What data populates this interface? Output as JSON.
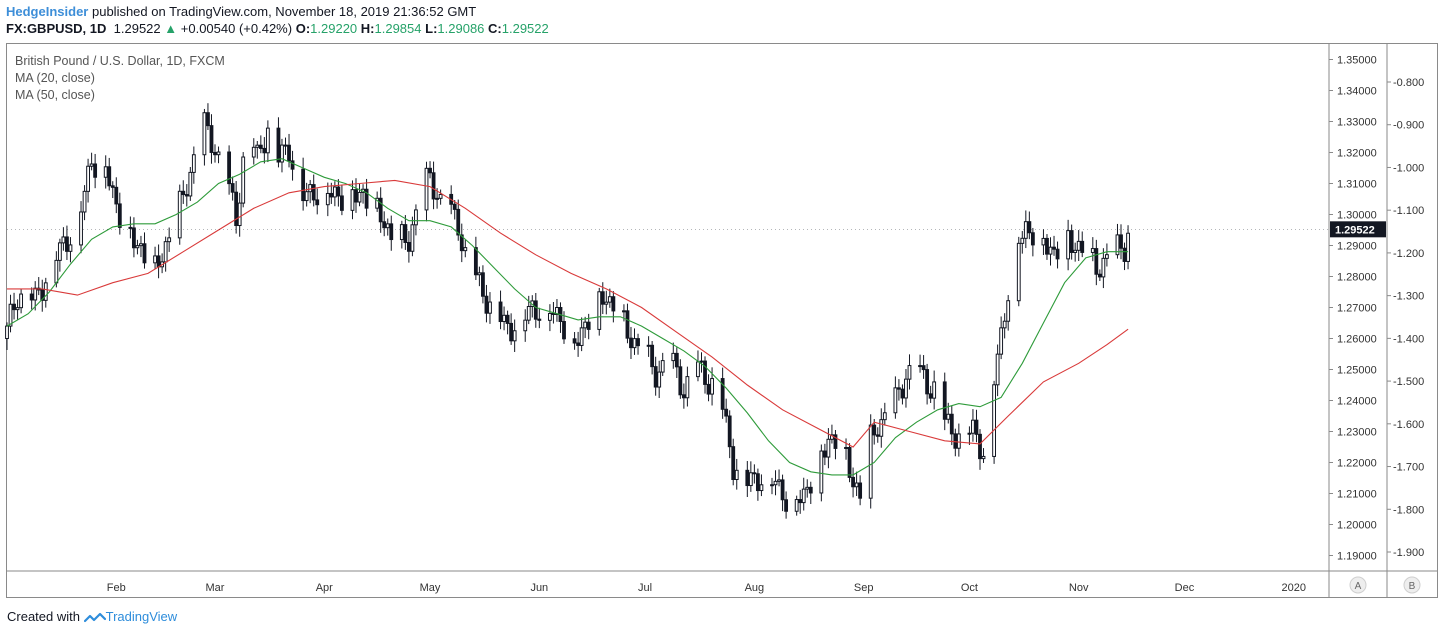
{
  "header": {
    "author": "HedgeInsider",
    "published_text": "published on TradingView.com, November 18, 2019 21:36:52 GMT",
    "symbol": "FX:GBPUSD, 1D",
    "last": "1.29522",
    "change_arrow": "▲",
    "change": "+0.00540 (+0.42%)",
    "o_label": "O:",
    "o_value": "1.29220",
    "h_label": "H:",
    "h_value": "1.29854",
    "l_label": "L:",
    "l_value": "1.29086",
    "c_label": "C:",
    "c_value": "1.29522"
  },
  "legend": {
    "title": "British Pound / U.S. Dollar, 1D, FXCM",
    "ma20": "MA (20, close)",
    "ma50": "MA (50, close)"
  },
  "footer": {
    "created_with": "Created with",
    "brand": "TradingView"
  },
  "axis_buttons": {
    "a": "A",
    "b": "B"
  },
  "colors": {
    "candle": "#131722",
    "ma20": "#2e9b3a",
    "ma50": "#d93a3a",
    "price_tag_bg": "#131722",
    "price_tag_text": "#ffffff"
  },
  "chart_data": {
    "type": "candlestick",
    "title": "British Pound / U.S. Dollar, 1D, FXCM",
    "price_axis": {
      "ylim": [
        1.185,
        1.355
      ],
      "ticks": [
        "1.35000",
        "1.34000",
        "1.33000",
        "1.32000",
        "1.31000",
        "1.30000",
        "1.29000",
        "1.28000",
        "1.27000",
        "1.26000",
        "1.25000",
        "1.24000",
        "1.23000",
        "1.22000",
        "1.21000",
        "1.20000",
        "1.19000"
      ],
      "current_price_label": "1.29522",
      "current_price": 1.29522
    },
    "secondary_axis": {
      "ticks": [
        "-0.800",
        "-0.900",
        "-1.000",
        "-1.100",
        "-1.200",
        "-1.300",
        "-1.400",
        "-1.500",
        "-1.600",
        "-1.700",
        "-1.800",
        "-1.900"
      ]
    },
    "time_axis": {
      "labels": [
        "Feb",
        "Mar",
        "Apr",
        "May",
        "Jun",
        "Jul",
        "Aug",
        "Sep",
        "Oct",
        "Nov",
        "Dec",
        "2020"
      ],
      "label_days": [
        31,
        59,
        90,
        120,
        151,
        181,
        212,
        243,
        273,
        304,
        334,
        365
      ],
      "xlim_days": [
        0,
        375
      ]
    },
    "price_path": [
      {
        "day": 0,
        "close": 1.262
      },
      {
        "day": 3,
        "close": 1.275
      },
      {
        "day": 8,
        "close": 1.272
      },
      {
        "day": 12,
        "close": 1.283
      },
      {
        "day": 17,
        "close": 1.292
      },
      {
        "day": 21,
        "close": 1.302
      },
      {
        "day": 24,
        "close": 1.318
      },
      {
        "day": 28,
        "close": 1.315
      },
      {
        "day": 31,
        "close": 1.303
      },
      {
        "day": 35,
        "close": 1.293
      },
      {
        "day": 38,
        "close": 1.289
      },
      {
        "day": 42,
        "close": 1.282
      },
      {
        "day": 45,
        "close": 1.29
      },
      {
        "day": 49,
        "close": 1.302
      },
      {
        "day": 53,
        "close": 1.318
      },
      {
        "day": 56,
        "close": 1.328
      },
      {
        "day": 59,
        "close": 1.322
      },
      {
        "day": 62,
        "close": 1.311
      },
      {
        "day": 65,
        "close": 1.299
      },
      {
        "day": 68,
        "close": 1.327
      },
      {
        "day": 71,
        "close": 1.318
      },
      {
        "day": 74,
        "close": 1.329
      },
      {
        "day": 77,
        "close": 1.318
      },
      {
        "day": 80,
        "close": 1.322
      },
      {
        "day": 84,
        "close": 1.306
      },
      {
        "day": 88,
        "close": 1.308
      },
      {
        "day": 92,
        "close": 1.307
      },
      {
        "day": 96,
        "close": 1.306
      },
      {
        "day": 101,
        "close": 1.307
      },
      {
        "day": 106,
        "close": 1.3
      },
      {
        "day": 110,
        "close": 1.291
      },
      {
        "day": 114,
        "close": 1.292
      },
      {
        "day": 117,
        "close": 1.305
      },
      {
        "day": 120,
        "close": 1.312
      },
      {
        "day": 124,
        "close": 1.302
      },
      {
        "day": 128,
        "close": 1.297
      },
      {
        "day": 131,
        "close": 1.283
      },
      {
        "day": 134,
        "close": 1.277
      },
      {
        "day": 138,
        "close": 1.27
      },
      {
        "day": 141,
        "close": 1.264
      },
      {
        "day": 145,
        "close": 1.265
      },
      {
        "day": 149,
        "close": 1.27
      },
      {
        "day": 153,
        "close": 1.27
      },
      {
        "day": 157,
        "close": 1.267
      },
      {
        "day": 161,
        "close": 1.258
      },
      {
        "day": 165,
        "close": 1.267
      },
      {
        "day": 169,
        "close": 1.274
      },
      {
        "day": 172,
        "close": 1.271
      },
      {
        "day": 176,
        "close": 1.262
      },
      {
        "day": 180,
        "close": 1.256
      },
      {
        "day": 184,
        "close": 1.249
      },
      {
        "day": 188,
        "close": 1.253
      },
      {
        "day": 192,
        "close": 1.244
      },
      {
        "day": 196,
        "close": 1.25
      },
      {
        "day": 200,
        "close": 1.246
      },
      {
        "day": 203,
        "close": 1.237
      },
      {
        "day": 206,
        "close": 1.22
      },
      {
        "day": 210,
        "close": 1.214
      },
      {
        "day": 214,
        "close": 1.216
      },
      {
        "day": 218,
        "close": 1.214
      },
      {
        "day": 222,
        "close": 1.207
      },
      {
        "day": 226,
        "close": 1.21
      },
      {
        "day": 230,
        "close": 1.219
      },
      {
        "day": 233,
        "close": 1.228
      },
      {
        "day": 236,
        "close": 1.227
      },
      {
        "day": 239,
        "close": 1.218
      },
      {
        "day": 242,
        "close": 1.209
      },
      {
        "day": 244,
        "close": 1.224
      },
      {
        "day": 247,
        "close": 1.233
      },
      {
        "day": 251,
        "close": 1.236
      },
      {
        "day": 255,
        "close": 1.249
      },
      {
        "day": 259,
        "close": 1.248
      },
      {
        "day": 263,
        "close": 1.244
      },
      {
        "day": 266,
        "close": 1.233
      },
      {
        "day": 270,
        "close": 1.229
      },
      {
        "day": 274,
        "close": 1.231
      },
      {
        "day": 277,
        "close": 1.224
      },
      {
        "day": 280,
        "close": 1.247
      },
      {
        "day": 283,
        "close": 1.269
      },
      {
        "day": 286,
        "close": 1.29
      },
      {
        "day": 289,
        "close": 1.296
      },
      {
        "day": 293,
        "close": 1.293
      },
      {
        "day": 297,
        "close": 1.288
      },
      {
        "day": 301,
        "close": 1.292
      },
      {
        "day": 305,
        "close": 1.289
      },
      {
        "day": 309,
        "close": 1.283
      },
      {
        "day": 313,
        "close": 1.287
      },
      {
        "day": 317,
        "close": 1.29
      },
      {
        "day": 318,
        "close": 1.295
      }
    ],
    "series": [
      {
        "name": "MA (20, close)",
        "points": [
          [
            0,
            1.264
          ],
          [
            6,
            1.268
          ],
          [
            12,
            1.275
          ],
          [
            18,
            1.284
          ],
          [
            24,
            1.292
          ],
          [
            30,
            1.296
          ],
          [
            36,
            1.297
          ],
          [
            42,
            1.297
          ],
          [
            48,
            1.3
          ],
          [
            54,
            1.304
          ],
          [
            60,
            1.31
          ],
          [
            66,
            1.313
          ],
          [
            72,
            1.317
          ],
          [
            78,
            1.318
          ],
          [
            84,
            1.315
          ],
          [
            90,
            1.312
          ],
          [
            96,
            1.31
          ],
          [
            102,
            1.307
          ],
          [
            108,
            1.302
          ],
          [
            114,
            1.298
          ],
          [
            120,
            1.298
          ],
          [
            126,
            1.296
          ],
          [
            132,
            1.29
          ],
          [
            138,
            1.283
          ],
          [
            144,
            1.276
          ],
          [
            150,
            1.27
          ],
          [
            156,
            1.268
          ],
          [
            162,
            1.266
          ],
          [
            168,
            1.267
          ],
          [
            174,
            1.267
          ],
          [
            180,
            1.264
          ],
          [
            186,
            1.26
          ],
          [
            192,
            1.256
          ],
          [
            198,
            1.251
          ],
          [
            204,
            1.244
          ],
          [
            210,
            1.236
          ],
          [
            216,
            1.227
          ],
          [
            222,
            1.22
          ],
          [
            228,
            1.217
          ],
          [
            234,
            1.216
          ],
          [
            240,
            1.216
          ],
          [
            246,
            1.22
          ],
          [
            252,
            1.228
          ],
          [
            258,
            1.233
          ],
          [
            264,
            1.237
          ],
          [
            270,
            1.239
          ],
          [
            276,
            1.238
          ],
          [
            282,
            1.241
          ],
          [
            288,
            1.252
          ],
          [
            294,
            1.265
          ],
          [
            300,
            1.278
          ],
          [
            306,
            1.286
          ],
          [
            312,
            1.288
          ],
          [
            318,
            1.288
          ]
        ]
      },
      {
        "name": "MA (50, close)",
        "points": [
          [
            0,
            1.276
          ],
          [
            10,
            1.276
          ],
          [
            20,
            1.274
          ],
          [
            30,
            1.278
          ],
          [
            40,
            1.281
          ],
          [
            50,
            1.288
          ],
          [
            60,
            1.295
          ],
          [
            70,
            1.302
          ],
          [
            80,
            1.307
          ],
          [
            90,
            1.309
          ],
          [
            100,
            1.31
          ],
          [
            110,
            1.311
          ],
          [
            120,
            1.309
          ],
          [
            130,
            1.302
          ],
          [
            140,
            1.294
          ],
          [
            150,
            1.287
          ],
          [
            160,
            1.281
          ],
          [
            170,
            1.276
          ],
          [
            180,
            1.27
          ],
          [
            190,
            1.262
          ],
          [
            200,
            1.254
          ],
          [
            210,
            1.245
          ],
          [
            220,
            1.237
          ],
          [
            230,
            1.231
          ],
          [
            240,
            1.225
          ],
          [
            246,
            1.233
          ],
          [
            256,
            1.23
          ],
          [
            266,
            1.227
          ],
          [
            276,
            1.226
          ],
          [
            284,
            1.235
          ],
          [
            294,
            1.246
          ],
          [
            304,
            1.252
          ],
          [
            312,
            1.258
          ],
          [
            318,
            1.263
          ]
        ]
      }
    ]
  }
}
